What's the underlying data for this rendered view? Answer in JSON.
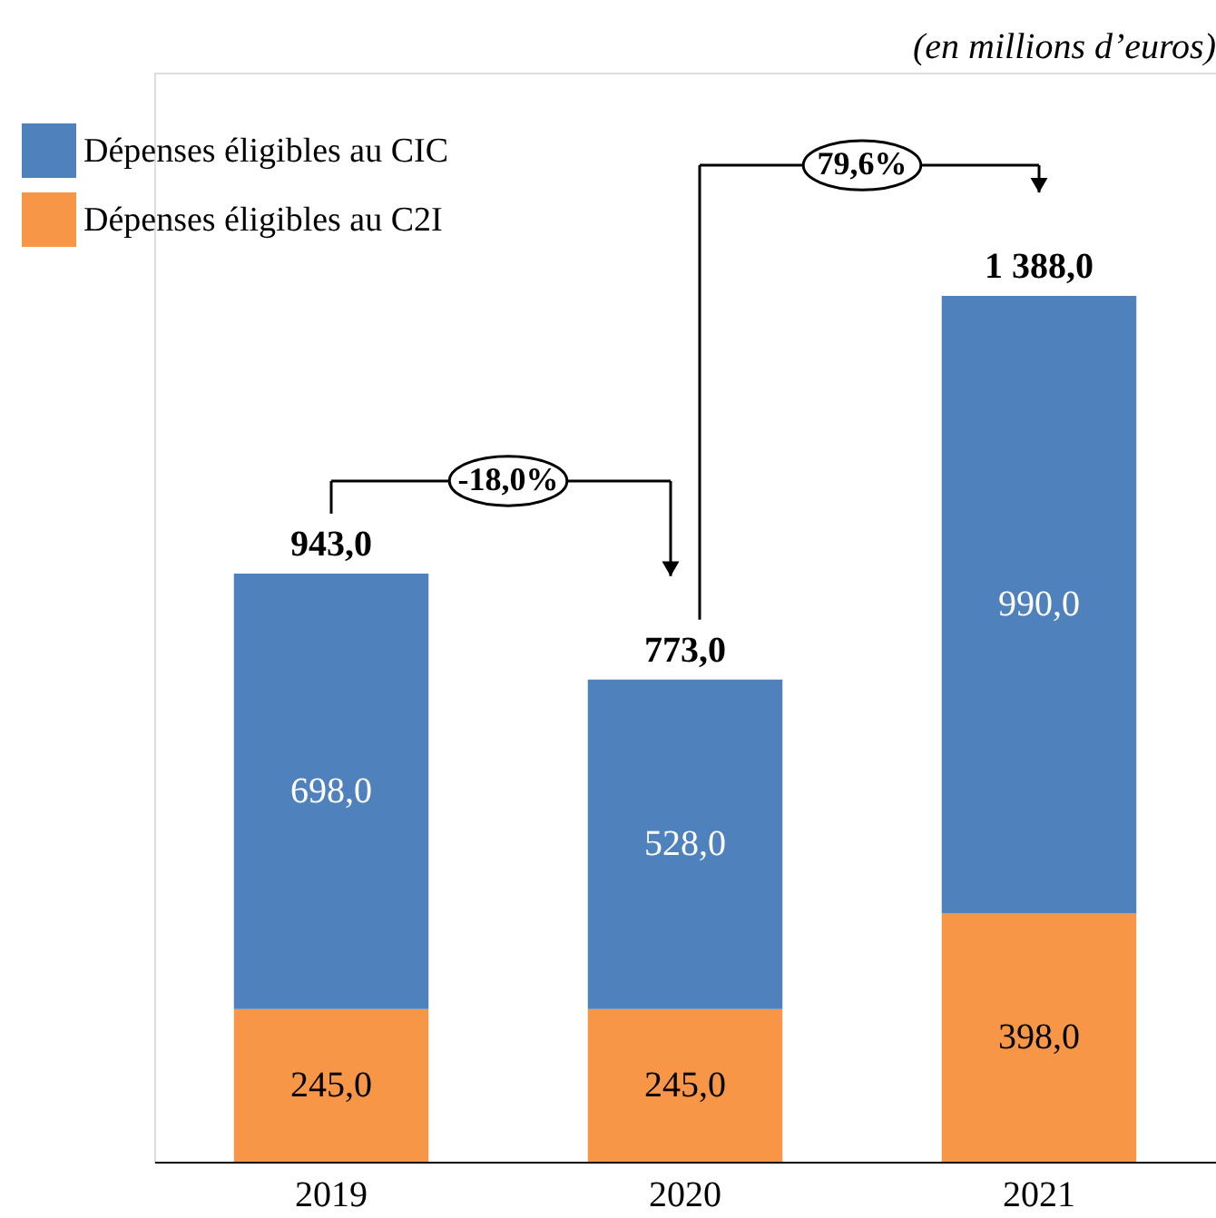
{
  "chart_data": {
    "type": "bar",
    "subtitle": "(en millions d’euros)",
    "categories": [
      "2019",
      "2020",
      "2021"
    ],
    "stacked": true,
    "series": [
      {
        "name": "Dépenses éligibles au C2I",
        "color": "#f79646",
        "values": [
          245.0,
          245.0,
          398.0
        ],
        "value_labels": [
          "245,0",
          "245,0",
          "398,0"
        ]
      },
      {
        "name": "Dépenses éligibles au CIC",
        "color": "#4f81bd",
        "values": [
          698.0,
          528.0,
          990.0
        ],
        "value_labels": [
          "698,0",
          "528,0",
          "990,0"
        ]
      }
    ],
    "totals": [
      "943,0",
      "773,0",
      "1 388,0"
    ],
    "annotations": [
      "-18,0%",
      "79,6%"
    ],
    "legend": "top left",
    "grid": false
  }
}
